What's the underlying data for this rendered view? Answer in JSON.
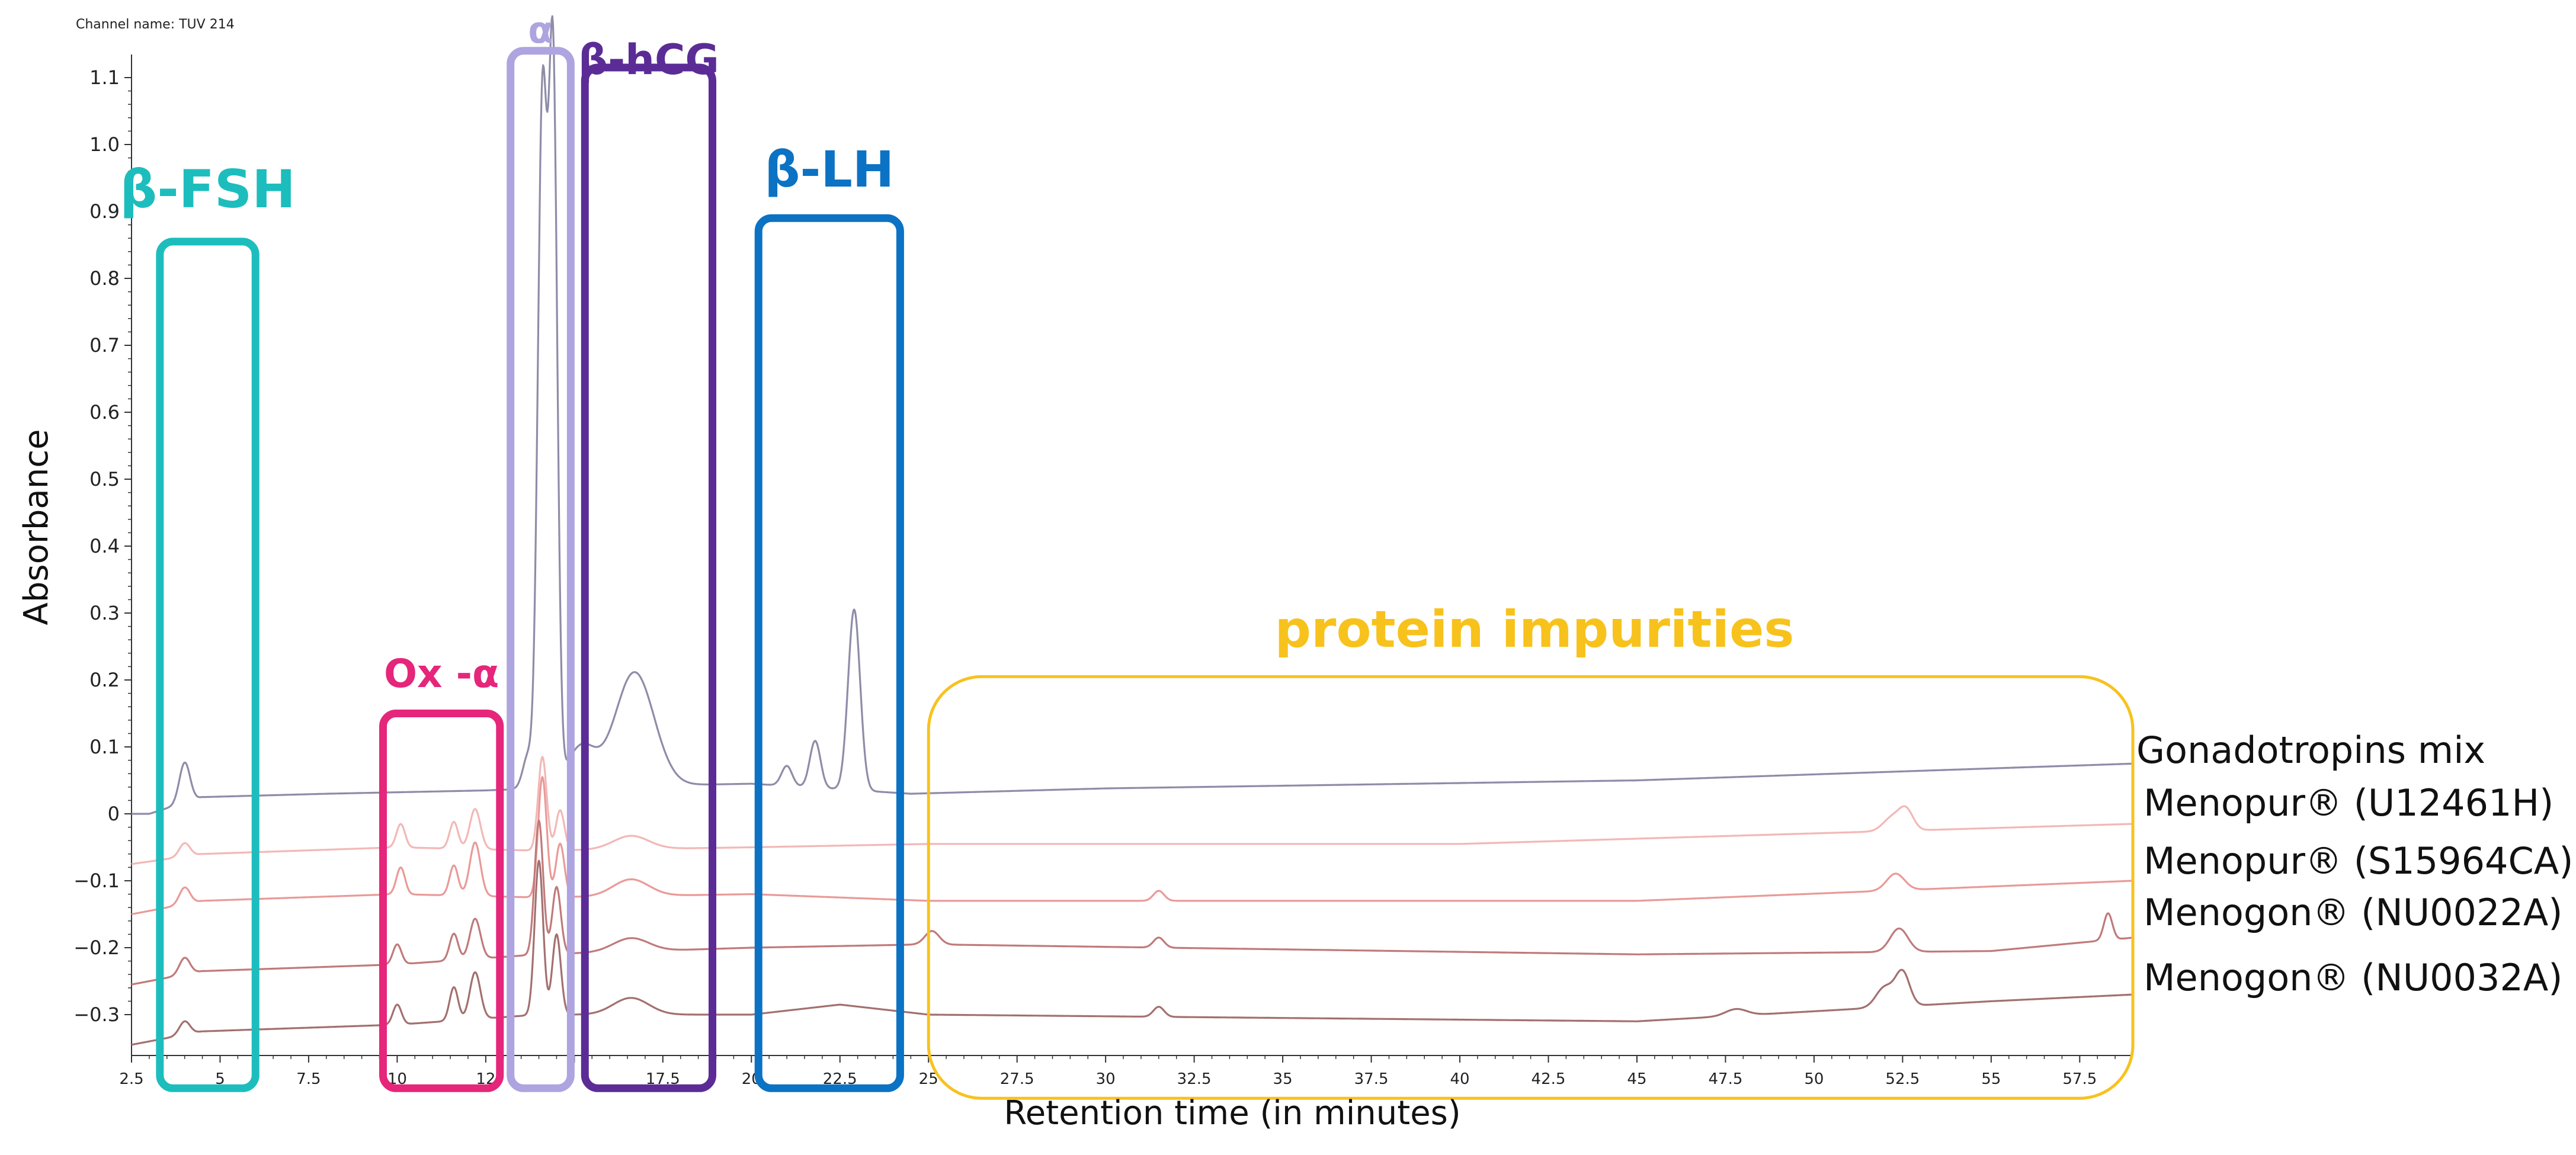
{
  "channel_name": "Channel name: TUV 214",
  "colors": {
    "beta_fsh": "#1DBDBD",
    "ox_alpha": "#E5267A",
    "alpha": "#ADA4E0",
    "beta_hcg": "#5B2C96",
    "beta_lh": "#0B72C4",
    "impurities": "#F8C21D"
  },
  "chart_data": {
    "type": "line",
    "xlabel": "Retention time (in minutes)",
    "ylabel": "Absorbance",
    "xlim": [
      2.5,
      59
    ],
    "ylim": [
      -0.36,
      1.13
    ],
    "x_ticks": [
      "2.5",
      "5",
      "7.5",
      "10",
      "12",
      "",
      "17.5",
      "20",
      "22.5",
      "25",
      "27.5",
      "30",
      "32.5",
      "35",
      "37.5",
      "40",
      "42.5",
      "45",
      "47.5",
      "50",
      "52.5",
      "55",
      "57.5"
    ],
    "y_ticks": [
      "1.1",
      "1.0",
      "0.9",
      "0.8",
      "0.7",
      "0.6",
      "0.5",
      "0.4",
      "0.3",
      "0.2",
      "0.1",
      "0",
      "−0.1",
      "−0.2",
      "−0.3"
    ],
    "regions": [
      {
        "label": "β-FSH",
        "x": [
          3.3,
          6.0
        ],
        "y": [
          -0.41,
          0.855
        ],
        "color": "#1DBDBD"
      },
      {
        "label": "Ox -α",
        "x": [
          9.6,
          12.9
        ],
        "y": [
          -0.41,
          0.15
        ],
        "color": "#E5267A"
      },
      {
        "label": "α",
        "x": [
          13.2,
          14.9
        ],
        "y": [
          -0.41,
          1.14
        ],
        "color": "#ADA4E0"
      },
      {
        "label": "β-hCG",
        "x": [
          15.3,
          18.9
        ],
        "y": [
          -0.41,
          1.115
        ],
        "color": "#5B2C96"
      },
      {
        "label": "β-LH",
        "x": [
          20.2,
          24.2
        ],
        "y": [
          -0.41,
          0.89
        ],
        "color": "#0B72C4"
      },
      {
        "label": "protein impurities",
        "x": [
          25.0,
          59.0
        ],
        "y": [
          -0.425,
          0.205
        ],
        "color": "#F8C21D"
      }
    ],
    "series": [
      {
        "name": "Gonadotropins mix",
        "color": "#8E8CA8",
        "baseline": [
          [
            2.5,
            0.0
          ],
          [
            3.0,
            0.0
          ],
          [
            4.5,
            0.025
          ],
          [
            8.0,
            0.03
          ],
          [
            12.5,
            0.035
          ],
          [
            15.0,
            0.04
          ],
          [
            20.0,
            0.045
          ],
          [
            24.5,
            0.03
          ],
          [
            30.0,
            0.038
          ],
          [
            45.0,
            0.05
          ],
          [
            59.0,
            0.075
          ]
        ],
        "peaks": [
          [
            4.0,
            0.06,
            0.15
          ],
          [
            14.1,
            1.02,
            0.13
          ],
          [
            14.4,
            1.06,
            0.12
          ],
          [
            13.7,
            0.05,
            0.15
          ],
          [
            15.2,
            0.06,
            0.4
          ],
          [
            16.7,
            0.17,
            0.55
          ],
          [
            21.0,
            0.03,
            0.15
          ],
          [
            21.8,
            0.07,
            0.15
          ],
          [
            22.9,
            0.27,
            0.17
          ]
        ]
      },
      {
        "name": "Menopur® (U12461H)",
        "color": "#F2B8B6",
        "baseline": [
          [
            2.5,
            -0.075
          ],
          [
            4.5,
            -0.06
          ],
          [
            10.0,
            -0.05
          ],
          [
            14.0,
            -0.055
          ],
          [
            20.0,
            -0.05
          ],
          [
            25.0,
            -0.045
          ],
          [
            40.0,
            -0.045
          ],
          [
            59.0,
            -0.015
          ]
        ],
        "peaks": [
          [
            4.0,
            0.02,
            0.15
          ],
          [
            10.1,
            0.035,
            0.12
          ],
          [
            11.6,
            0.04,
            0.12
          ],
          [
            12.2,
            0.06,
            0.15
          ],
          [
            14.1,
            0.14,
            0.12
          ],
          [
            14.6,
            0.06,
            0.12
          ],
          [
            16.6,
            0.02,
            0.5
          ],
          [
            52.2,
            0.02,
            0.25
          ],
          [
            52.6,
            0.03,
            0.2
          ]
        ]
      },
      {
        "name": "Menopur® (S15964CA)",
        "color": "#E99A98",
        "baseline": [
          [
            2.5,
            -0.15
          ],
          [
            4.5,
            -0.13
          ],
          [
            10.0,
            -0.12
          ],
          [
            14.0,
            -0.125
          ],
          [
            20.0,
            -0.12
          ],
          [
            25.0,
            -0.13
          ],
          [
            45.0,
            -0.13
          ],
          [
            59.0,
            -0.1
          ]
        ],
        "peaks": [
          [
            4.0,
            0.025,
            0.15
          ],
          [
            10.1,
            0.04,
            0.12
          ],
          [
            11.6,
            0.045,
            0.12
          ],
          [
            12.2,
            0.08,
            0.15
          ],
          [
            14.1,
            0.18,
            0.12
          ],
          [
            14.6,
            0.08,
            0.12
          ],
          [
            16.6,
            0.025,
            0.5
          ],
          [
            31.5,
            0.015,
            0.15
          ],
          [
            52.3,
            0.025,
            0.25
          ]
        ]
      },
      {
        "name": "Menogon® (NU0022A)",
        "color": "#C07A7A",
        "baseline": [
          [
            2.5,
            -0.255
          ],
          [
            4.5,
            -0.235
          ],
          [
            10.0,
            -0.225
          ],
          [
            14.0,
            -0.21
          ],
          [
            20.0,
            -0.2
          ],
          [
            25.0,
            -0.195
          ],
          [
            45.0,
            -0.21
          ],
          [
            55.0,
            -0.205
          ],
          [
            59.0,
            -0.185
          ]
        ],
        "peaks": [
          [
            4.0,
            0.025,
            0.15
          ],
          [
            10.0,
            0.03,
            0.12
          ],
          [
            11.6,
            0.04,
            0.12
          ],
          [
            12.2,
            0.06,
            0.15
          ],
          [
            14.0,
            0.2,
            0.12
          ],
          [
            14.5,
            0.1,
            0.12
          ],
          [
            16.6,
            0.02,
            0.5
          ],
          [
            25.1,
            0.02,
            0.2
          ],
          [
            31.5,
            0.015,
            0.15
          ],
          [
            52.4,
            0.035,
            0.25
          ],
          [
            58.3,
            0.04,
            0.12
          ]
        ]
      },
      {
        "name": "Menogon® (NU0032A)",
        "color": "#A3706F",
        "baseline": [
          [
            2.5,
            -0.345
          ],
          [
            4.5,
            -0.325
          ],
          [
            10.0,
            -0.315
          ],
          [
            14.0,
            -0.3
          ],
          [
            20.0,
            -0.3
          ],
          [
            22.5,
            -0.285
          ],
          [
            25.0,
            -0.3
          ],
          [
            45.0,
            -0.31
          ],
          [
            55.0,
            -0.28
          ],
          [
            59.0,
            -0.27
          ]
        ],
        "peaks": [
          [
            4.0,
            0.02,
            0.15
          ],
          [
            10.0,
            0.03,
            0.12
          ],
          [
            11.6,
            0.05,
            0.12
          ],
          [
            12.2,
            0.07,
            0.15
          ],
          [
            14.0,
            0.23,
            0.12
          ],
          [
            14.5,
            0.12,
            0.12
          ],
          [
            16.6,
            0.025,
            0.5
          ],
          [
            31.5,
            0.015,
            0.15
          ],
          [
            52.0,
            0.03,
            0.25
          ],
          [
            52.5,
            0.05,
            0.2
          ],
          [
            47.8,
            0.01,
            0.3
          ]
        ]
      }
    ]
  }
}
